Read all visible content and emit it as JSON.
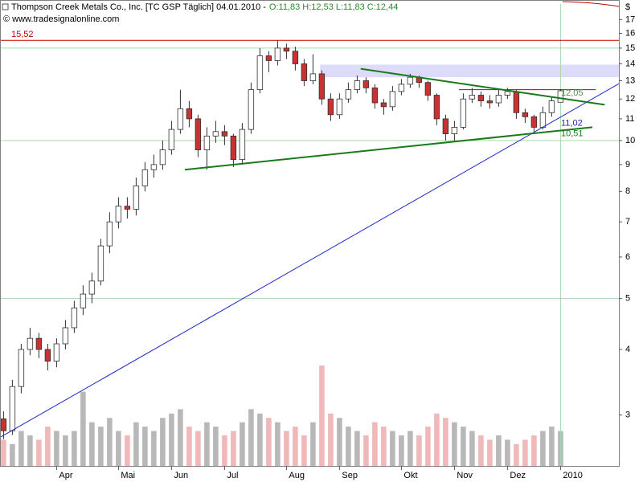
{
  "chart_data": {
    "type": "candlestick",
    "title": "Thompson Creek Metals Co., Inc. [TC GSP  Täglich] 04.01.2010 -",
    "quote": "O:11,83 H:12,53 L:11,83 C:12,44",
    "source": "© www.tradesignalonline.com",
    "y_unit": "$",
    "log_scale": true,
    "ylim": [
      2.4,
      18.2
    ],
    "yticks": [
      3,
      4,
      5,
      6,
      7,
      8,
      9,
      10,
      11,
      12,
      13,
      14,
      15,
      16,
      17
    ],
    "xlim": [
      -0.4,
      69.6
    ],
    "hlines": [
      5,
      10,
      15
    ],
    "grid_color": "#a8d8a8",
    "up_color": "#ffffff",
    "down_color": "#c83232",
    "categories": [
      null,
      null,
      null,
      null,
      null,
      null,
      "Apr",
      null,
      null,
      null,
      null,
      null,
      null,
      "Mai",
      null,
      null,
      null,
      null,
      null,
      "Jun",
      null,
      null,
      null,
      null,
      null,
      "Jul",
      null,
      null,
      null,
      null,
      null,
      null,
      "Aug",
      null,
      null,
      null,
      null,
      null,
      "Sep",
      null,
      null,
      null,
      null,
      null,
      null,
      "Okt",
      null,
      null,
      null,
      null,
      null,
      "Nov",
      null,
      null,
      null,
      null,
      null,
      "Dez",
      null,
      null,
      null,
      null,
      null,
      "2010"
    ],
    "open": [
      2.95,
      2.8,
      3.4,
      4.0,
      4.2,
      4.0,
      3.8,
      4.1,
      4.4,
      4.8,
      5.1,
      5.4,
      6.3,
      7.0,
      7.5,
      7.4,
      8.2,
      8.8,
      9.0,
      9.6,
      10.5,
      11.5,
      11.0,
      9.6,
      10.2,
      10.4,
      10.2,
      9.2,
      10.5,
      12.5,
      14.5,
      14.2,
      15.0,
      14.8,
      14.0,
      13.0,
      13.4,
      12.0,
      11.2,
      12.0,
      12.5,
      13.0,
      12.6,
      11.8,
      11.6,
      12.4,
      12.8,
      13.2,
      12.9,
      12.2,
      11.0,
      10.3,
      10.6,
      12.0,
      12.2,
      11.9,
      11.8,
      12.2,
      12.4,
      11.3,
      11.1,
      10.6,
      11.3,
      11.83
    ],
    "high": [
      3.05,
      3.5,
      4.1,
      4.4,
      4.3,
      4.1,
      4.2,
      4.55,
      4.95,
      5.3,
      5.6,
      6.5,
      7.3,
      7.8,
      7.8,
      8.5,
      9.1,
      9.4,
      10.0,
      10.9,
      12.5,
      11.9,
      11.2,
      10.6,
      10.9,
      10.7,
      10.3,
      10.8,
      12.9,
      15.0,
      14.8,
      15.52,
      15.3,
      15.1,
      14.3,
      14.6,
      13.6,
      12.3,
      12.3,
      12.9,
      13.3,
      13.2,
      12.8,
      12.0,
      12.7,
      13.1,
      13.4,
      13.3,
      13.0,
      12.3,
      11.2,
      10.9,
      12.3,
      12.6,
      12.4,
      12.2,
      12.5,
      12.6,
      12.5,
      11.5,
      11.2,
      11.6,
      12.1,
      12.53
    ],
    "low": [
      2.7,
      2.75,
      3.3,
      3.9,
      3.85,
      3.65,
      3.7,
      4.0,
      4.3,
      4.65,
      4.9,
      5.3,
      6.1,
      6.8,
      7.1,
      7.2,
      8.0,
      8.5,
      8.8,
      9.4,
      10.3,
      10.6,
      9.3,
      8.8,
      9.9,
      9.8,
      8.9,
      9.0,
      10.3,
      12.3,
      13.5,
      13.9,
      14.3,
      13.6,
      12.7,
      12.8,
      11.7,
      10.9,
      11.0,
      11.8,
      12.3,
      12.3,
      11.5,
      11.2,
      11.4,
      12.2,
      12.6,
      12.6,
      11.9,
      10.7,
      10.0,
      10.0,
      10.5,
      11.8,
      11.6,
      11.5,
      11.6,
      12.0,
      11.0,
      10.8,
      10.4,
      10.5,
      11.1,
      11.83
    ],
    "close": [
      2.8,
      3.4,
      4.0,
      4.2,
      4.0,
      3.8,
      4.1,
      4.4,
      4.8,
      5.1,
      5.4,
      6.3,
      7.0,
      7.5,
      7.4,
      8.2,
      8.8,
      9.0,
      9.6,
      10.5,
      11.5,
      11.0,
      9.6,
      10.2,
      10.4,
      10.2,
      9.2,
      10.5,
      12.5,
      14.5,
      14.2,
      15.0,
      14.8,
      14.0,
      13.0,
      13.4,
      12.0,
      11.2,
      12.0,
      12.5,
      13.0,
      12.6,
      11.8,
      11.6,
      12.4,
      12.8,
      13.2,
      12.9,
      12.2,
      11.0,
      10.3,
      10.6,
      12.0,
      12.2,
      11.9,
      11.8,
      12.2,
      12.4,
      11.3,
      11.1,
      10.6,
      11.3,
      11.9,
      12.44
    ],
    "volume": [
      30,
      25,
      40,
      35,
      30,
      45,
      40,
      35,
      40,
      85,
      50,
      45,
      55,
      40,
      35,
      50,
      45,
      40,
      55,
      60,
      65,
      45,
      40,
      50,
      45,
      35,
      40,
      50,
      65,
      60,
      55,
      50,
      40,
      45,
      35,
      50,
      115,
      60,
      55,
      45,
      40,
      35,
      50,
      45,
      40,
      35,
      40,
      35,
      45,
      60,
      55,
      50,
      45,
      40,
      35,
      30,
      35,
      30,
      25,
      30,
      35,
      40,
      45,
      40
    ],
    "volume_up_color": "#b8b8b8",
    "volume_down_color": "#f0b8b8",
    "band": {
      "x": [
        35.8,
        69.6
      ],
      "y": [
        13.2,
        13.95
      ],
      "color": "#dcdcfa"
    },
    "lines": [
      {
        "x": [
          -0.4,
          69.6
        ],
        "y": [
          15.52,
          15.52
        ],
        "color": "#c00000",
        "width": 1
      },
      {
        "x": [
          51.5,
          67
        ],
        "y": [
          12.5,
          12.5
        ],
        "color": "#c00000",
        "width": 1
      },
      {
        "x": [
          -0.4,
          69.6
        ],
        "y": [
          2.72,
          12.83
        ],
        "color": "#1a28c8",
        "width": 1
      },
      {
        "x": [
          40.4,
          68
        ],
        "y": [
          13.7,
          11.7
        ],
        "color": "#1a7a1a",
        "width": 2
      },
      {
        "x": [
          20.5,
          66.6
        ],
        "y": [
          8.8,
          10.6
        ],
        "color": "#1a7a1a",
        "width": 2
      }
    ],
    "levels": [
      {
        "value": 15.52,
        "label": "15,52",
        "color": "#c00000"
      },
      {
        "value": 12.05,
        "label": "12,05",
        "color": "#508a50"
      },
      {
        "value": 11.02,
        "label": "11,02",
        "color": "#1a28c8"
      },
      {
        "value": 10.51,
        "label": "10,51",
        "color": "#1a7a1a"
      }
    ]
  }
}
